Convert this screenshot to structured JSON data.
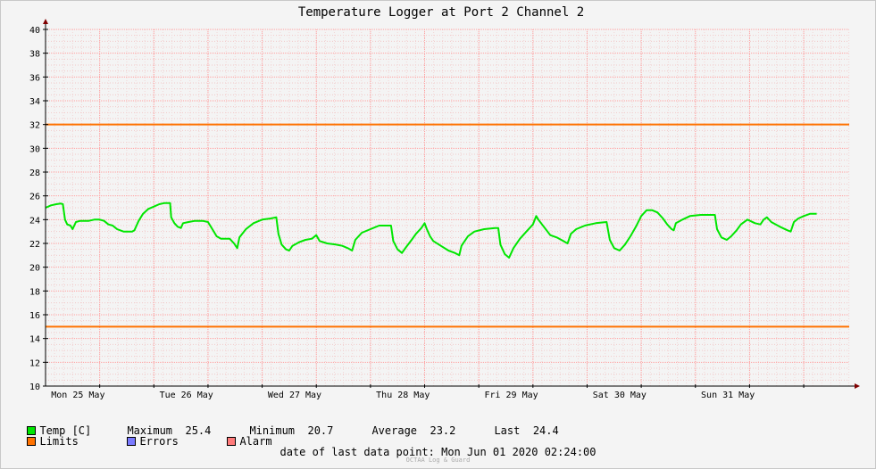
{
  "chart_data": {
    "type": "line",
    "title": "Temperature Logger at Port 2 Channel 2",
    "ylim": [
      10,
      40
    ],
    "yticks": [
      10,
      12,
      14,
      16,
      18,
      20,
      22,
      24,
      26,
      28,
      30,
      32,
      34,
      36,
      38,
      40
    ],
    "xlim": [
      0,
      7.42
    ],
    "x_tick_labels": [
      {
        "x": 0.3,
        "label": "Mon 25 May"
      },
      {
        "x": 1.3,
        "label": "Tue 26 May"
      },
      {
        "x": 2.3,
        "label": "Wed 27 May"
      },
      {
        "x": 3.3,
        "label": "Thu 28 May"
      },
      {
        "x": 4.3,
        "label": "Fri 29 May"
      },
      {
        "x": 5.3,
        "label": "Sat 30 May"
      },
      {
        "x": 6.3,
        "label": "Sun 31 May"
      }
    ],
    "grid": true,
    "colors": {
      "temp": "#00e600",
      "limits": "#ff7200",
      "grid": "#ff9f9f",
      "axis": "#000000",
      "arrow": "#800000"
    },
    "limits": [
      15,
      32
    ],
    "series": [
      {
        "name": "Temp [C]",
        "x_unit": "days since Mon 25 May 00:00 (plot starts midnight)",
        "points": [
          [
            0.0,
            25.0
          ],
          [
            0.05,
            25.2
          ],
          [
            0.1,
            25.3
          ],
          [
            0.14,
            25.35
          ],
          [
            0.16,
            25.3
          ],
          [
            0.18,
            24.0
          ],
          [
            0.2,
            23.6
          ],
          [
            0.23,
            23.5
          ],
          [
            0.25,
            23.2
          ],
          [
            0.28,
            23.8
          ],
          [
            0.32,
            23.9
          ],
          [
            0.4,
            23.9
          ],
          [
            0.45,
            24.0
          ],
          [
            0.5,
            24.0
          ],
          [
            0.54,
            23.9
          ],
          [
            0.58,
            23.6
          ],
          [
            0.62,
            23.5
          ],
          [
            0.66,
            23.2
          ],
          [
            0.72,
            23.0
          ],
          [
            0.8,
            23.0
          ],
          [
            0.82,
            23.1
          ],
          [
            0.86,
            23.9
          ],
          [
            0.9,
            24.5
          ],
          [
            0.95,
            24.9
          ],
          [
            1.0,
            25.1
          ],
          [
            1.05,
            25.3
          ],
          [
            1.1,
            25.4
          ],
          [
            1.15,
            25.4
          ],
          [
            1.16,
            24.2
          ],
          [
            1.19,
            23.7
          ],
          [
            1.22,
            23.4
          ],
          [
            1.25,
            23.3
          ],
          [
            1.27,
            23.7
          ],
          [
            1.32,
            23.8
          ],
          [
            1.38,
            23.9
          ],
          [
            1.45,
            23.9
          ],
          [
            1.5,
            23.8
          ],
          [
            1.54,
            23.2
          ],
          [
            1.58,
            22.6
          ],
          [
            1.62,
            22.4
          ],
          [
            1.7,
            22.4
          ],
          [
            1.74,
            22.0
          ],
          [
            1.77,
            21.6
          ],
          [
            1.79,
            22.5
          ],
          [
            1.85,
            23.2
          ],
          [
            1.92,
            23.7
          ],
          [
            2.0,
            24.0
          ],
          [
            2.08,
            24.1
          ],
          [
            2.13,
            24.2
          ],
          [
            2.15,
            22.8
          ],
          [
            2.18,
            21.9
          ],
          [
            2.22,
            21.5
          ],
          [
            2.25,
            21.4
          ],
          [
            2.28,
            21.8
          ],
          [
            2.34,
            22.1
          ],
          [
            2.4,
            22.3
          ],
          [
            2.46,
            22.4
          ],
          [
            2.5,
            22.7
          ],
          [
            2.53,
            22.2
          ],
          [
            2.6,
            22.0
          ],
          [
            2.68,
            21.9
          ],
          [
            2.74,
            21.8
          ],
          [
            2.79,
            21.6
          ],
          [
            2.83,
            21.4
          ],
          [
            2.86,
            22.3
          ],
          [
            2.92,
            22.9
          ],
          [
            3.0,
            23.2
          ],
          [
            3.08,
            23.5
          ],
          [
            3.15,
            23.5
          ],
          [
            3.19,
            23.5
          ],
          [
            3.21,
            22.2
          ],
          [
            3.25,
            21.5
          ],
          [
            3.29,
            21.2
          ],
          [
            3.33,
            21.7
          ],
          [
            3.38,
            22.3
          ],
          [
            3.42,
            22.8
          ],
          [
            3.47,
            23.3
          ],
          [
            3.5,
            23.7
          ],
          [
            3.52,
            23.2
          ],
          [
            3.55,
            22.6
          ],
          [
            3.58,
            22.2
          ],
          [
            3.65,
            21.8
          ],
          [
            3.72,
            21.4
          ],
          [
            3.78,
            21.2
          ],
          [
            3.82,
            21.0
          ],
          [
            3.84,
            21.8
          ],
          [
            3.9,
            22.6
          ],
          [
            3.96,
            23.0
          ],
          [
            4.05,
            23.2
          ],
          [
            4.15,
            23.3
          ],
          [
            4.18,
            23.3
          ],
          [
            4.2,
            21.9
          ],
          [
            4.24,
            21.1
          ],
          [
            4.28,
            20.8
          ],
          [
            4.32,
            21.6
          ],
          [
            4.38,
            22.4
          ],
          [
            4.44,
            23.0
          ],
          [
            4.5,
            23.6
          ],
          [
            4.53,
            24.3
          ],
          [
            4.55,
            24.0
          ],
          [
            4.6,
            23.4
          ],
          [
            4.66,
            22.7
          ],
          [
            4.72,
            22.5
          ],
          [
            4.78,
            22.2
          ],
          [
            4.82,
            22.0
          ],
          [
            4.85,
            22.8
          ],
          [
            4.9,
            23.2
          ],
          [
            4.98,
            23.5
          ],
          [
            5.08,
            23.7
          ],
          [
            5.18,
            23.8
          ],
          [
            5.21,
            22.3
          ],
          [
            5.25,
            21.6
          ],
          [
            5.3,
            21.4
          ],
          [
            5.35,
            21.9
          ],
          [
            5.4,
            22.6
          ],
          [
            5.45,
            23.4
          ],
          [
            5.5,
            24.3
          ],
          [
            5.55,
            24.8
          ],
          [
            5.6,
            24.8
          ],
          [
            5.65,
            24.6
          ],
          [
            5.7,
            24.1
          ],
          [
            5.74,
            23.6
          ],
          [
            5.78,
            23.2
          ],
          [
            5.8,
            23.1
          ],
          [
            5.82,
            23.7
          ],
          [
            5.88,
            24.0
          ],
          [
            5.95,
            24.3
          ],
          [
            6.05,
            24.4
          ],
          [
            6.18,
            24.4
          ],
          [
            6.2,
            23.2
          ],
          [
            6.24,
            22.5
          ],
          [
            6.29,
            22.3
          ],
          [
            6.33,
            22.6
          ],
          [
            6.38,
            23.1
          ],
          [
            6.42,
            23.6
          ],
          [
            6.48,
            24.0
          ],
          [
            6.55,
            23.7
          ],
          [
            6.6,
            23.6
          ],
          [
            6.63,
            24.0
          ],
          [
            6.66,
            24.2
          ],
          [
            6.7,
            23.8
          ],
          [
            6.78,
            23.4
          ],
          [
            6.85,
            23.1
          ],
          [
            6.88,
            23.0
          ],
          [
            6.91,
            23.8
          ],
          [
            6.95,
            24.1
          ],
          [
            7.0,
            24.3
          ],
          [
            7.06,
            24.5
          ],
          [
            7.12,
            24.5
          ]
        ]
      }
    ]
  },
  "legend": {
    "temp_label": "Temp [C]",
    "max_label": "Maximum",
    "max_value": "25.4",
    "min_label": "Minimum",
    "min_value": "20.7",
    "avg_label": "Average",
    "avg_value": "23.2",
    "last_label": "Last",
    "last_value": "24.4",
    "limits_label": "Limits",
    "errors_label": "Errors",
    "alarm_label": "Alarm",
    "swatch_colors": {
      "temp": "#00e600",
      "limits": "#ff7200",
      "errors": "#7a7aff",
      "alarm": "#ff7a7a"
    }
  },
  "footer": {
    "last_point_label": "date of last data point:",
    "last_point_value": "Mon Jun 01 2020 02:24:00",
    "credit": "OCTAA Log & Guard"
  }
}
